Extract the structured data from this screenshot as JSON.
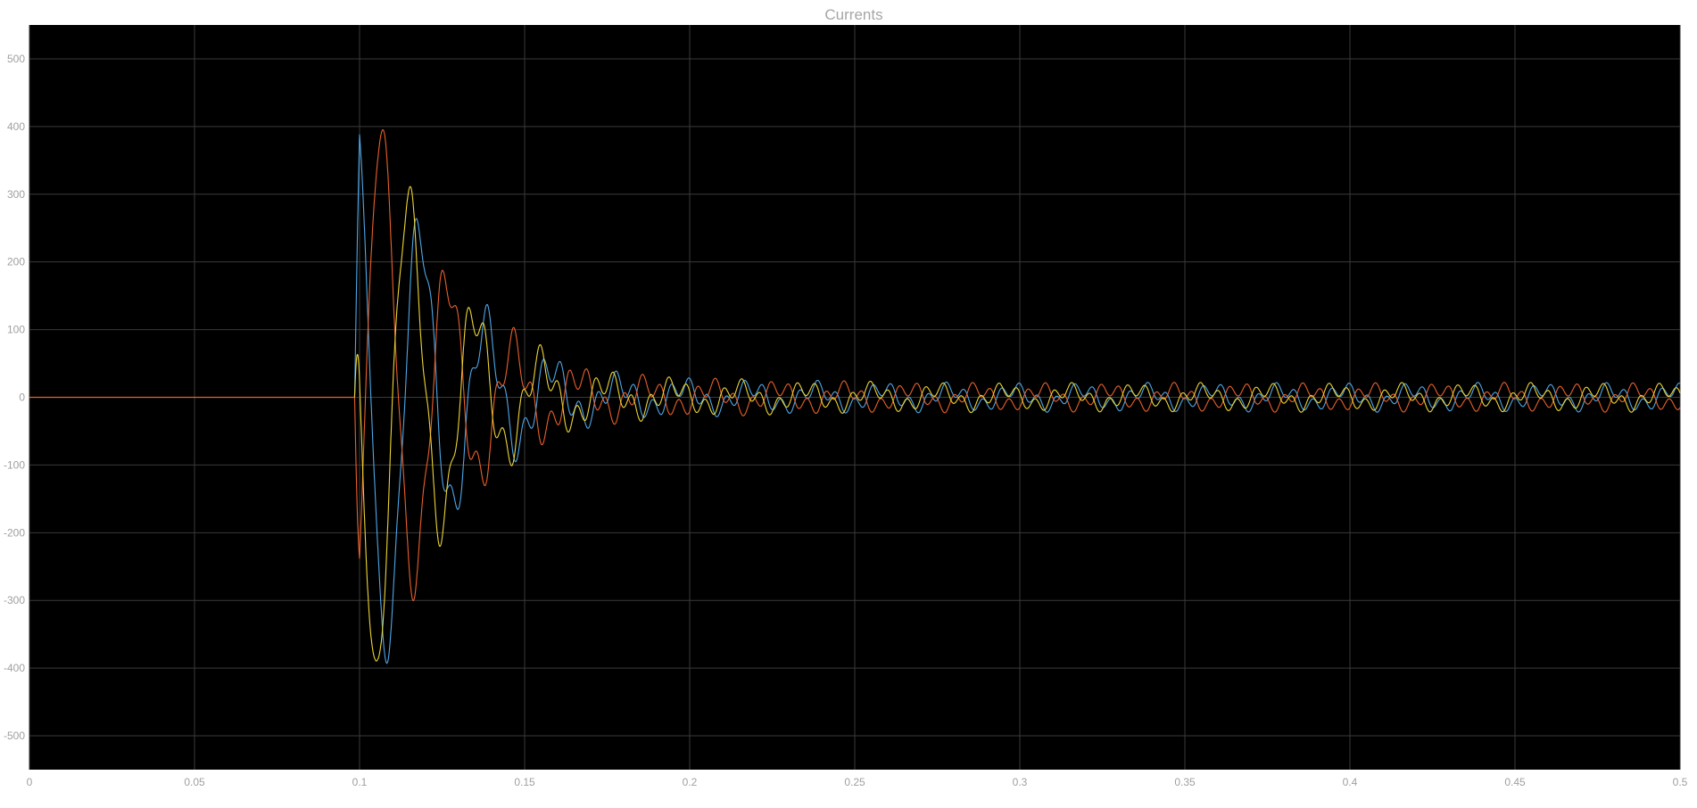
{
  "chart_data": {
    "type": "line",
    "title": "Currents",
    "xlabel": "",
    "ylabel": "",
    "xlim": [
      0,
      0.5
    ],
    "ylim": [
      -550,
      550
    ],
    "x_ticks": [
      "0",
      "0.05",
      "0.1",
      "0.15",
      "0.2",
      "0.25",
      "0.3",
      "0.35",
      "0.4",
      "0.45",
      "0.5"
    ],
    "x_tick_values": [
      0,
      0.05,
      0.1,
      0.15,
      0.2,
      0.25,
      0.3,
      0.35,
      0.4,
      0.45,
      0.5
    ],
    "y_ticks": [
      "500",
      "400",
      "300",
      "200",
      "100",
      "0",
      "-100",
      "-200",
      "-300",
      "-400",
      "-500"
    ],
    "y_tick_values": [
      500,
      400,
      300,
      200,
      100,
      0,
      -100,
      -200,
      -300,
      -400,
      -500
    ],
    "grid": true,
    "background": "#000000",
    "series": [
      {
        "color": "#4ea7e8",
        "phase_offset_deg": 0
      },
      {
        "color": "#e8602c",
        "phase_offset_deg": 120
      },
      {
        "color": "#ecd535",
        "phase_offset_deg": 240
      }
    ],
    "envelope": {
      "x": [
        0,
        0.0985,
        0.1,
        0.105,
        0.11,
        0.12,
        0.13,
        0.14,
        0.15,
        0.16,
        0.17,
        0.18,
        0.19,
        0.2,
        0.22,
        0.25,
        0.3,
        0.35,
        0.4,
        0.45,
        0.5
      ],
      "y": [
        0,
        0,
        435,
        420,
        380,
        260,
        185,
        130,
        90,
        65,
        45,
        38,
        33,
        30,
        27,
        24,
        22,
        22,
        22,
        22,
        22
      ]
    },
    "fault_onset": 0.0985
  }
}
